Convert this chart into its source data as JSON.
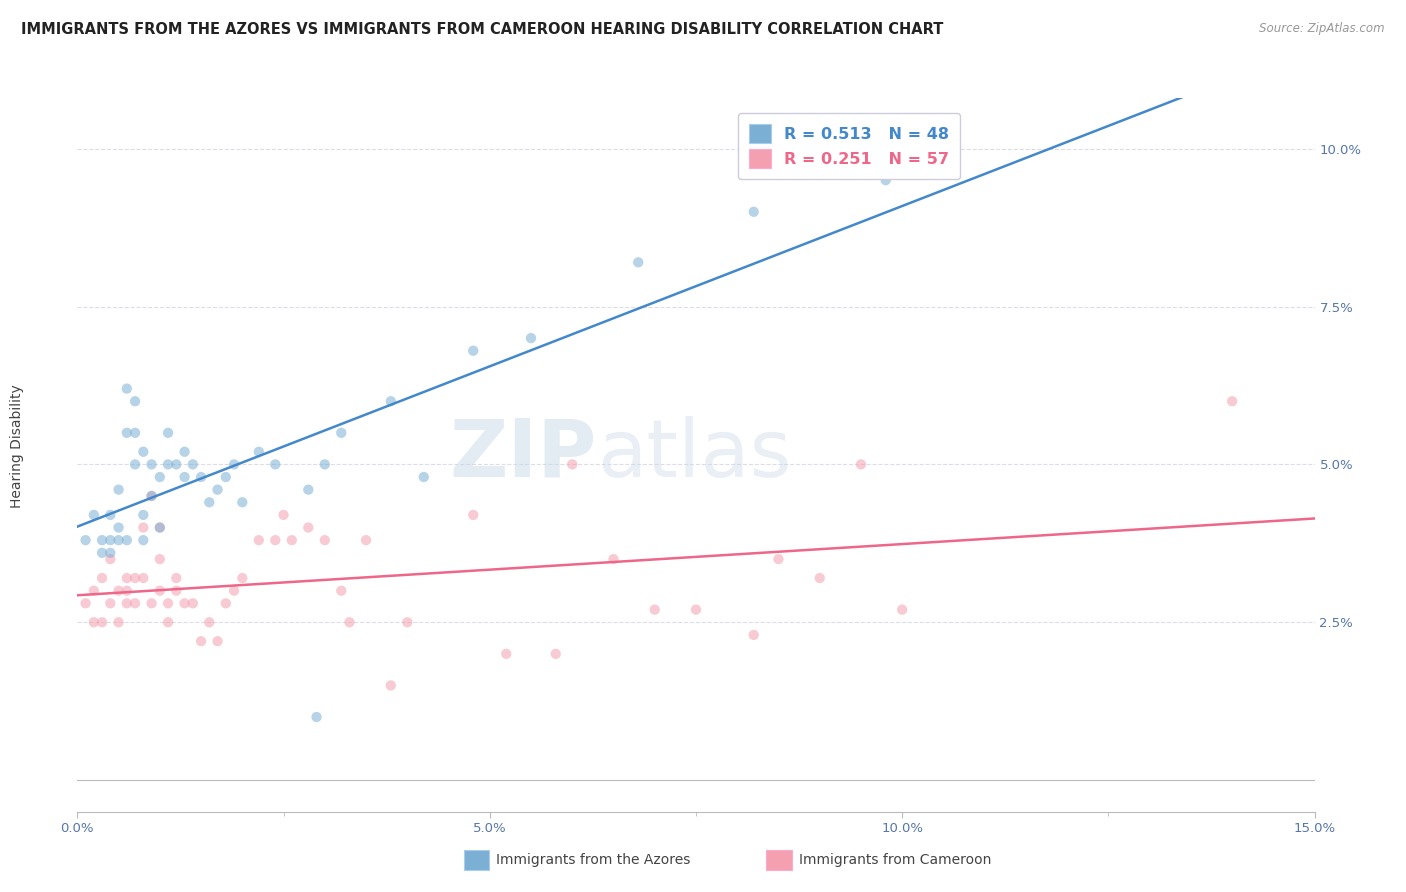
{
  "title": "IMMIGRANTS FROM THE AZORES VS IMMIGRANTS FROM CAMEROON HEARING DISABILITY CORRELATION CHART",
  "source": "Source: ZipAtlas.com",
  "ylabel": "Hearing Disability",
  "xlim": [
    0.0,
    0.15
  ],
  "ylim": [
    -0.005,
    0.108
  ],
  "xticks_major": [
    0.0,
    0.05,
    0.1,
    0.15
  ],
  "xticks_minor": [
    0.025,
    0.075,
    0.125
  ],
  "xtick_labels": [
    "0.0%",
    "5.0%",
    "10.0%",
    "15.0%"
  ],
  "yticks": [
    0.025,
    0.05,
    0.075,
    0.1
  ],
  "ytick_labels": [
    "2.5%",
    "5.0%",
    "7.5%",
    "10.0%"
  ],
  "azores_color": "#7BAFD4",
  "cameroon_color": "#F4A0B0",
  "azores_line_color": "#4488CC",
  "cameroon_line_color": "#EE6688",
  "legend_R_azores": "R = 0.513",
  "legend_N_azores": "N = 48",
  "legend_R_cameroon": "R = 0.251",
  "legend_N_cameroon": "N = 57",
  "watermark_zip": "ZIP",
  "watermark_atlas": "atlas",
  "azores_x": [
    0.001,
    0.002,
    0.003,
    0.003,
    0.004,
    0.004,
    0.004,
    0.005,
    0.005,
    0.005,
    0.006,
    0.006,
    0.006,
    0.007,
    0.007,
    0.007,
    0.008,
    0.008,
    0.008,
    0.009,
    0.009,
    0.01,
    0.01,
    0.011,
    0.011,
    0.012,
    0.013,
    0.013,
    0.014,
    0.015,
    0.016,
    0.017,
    0.018,
    0.019,
    0.02,
    0.022,
    0.024,
    0.028,
    0.03,
    0.032,
    0.038,
    0.042,
    0.048,
    0.055,
    0.068,
    0.082,
    0.098,
    0.029
  ],
  "azores_y": [
    0.038,
    0.042,
    0.038,
    0.036,
    0.042,
    0.038,
    0.036,
    0.04,
    0.038,
    0.046,
    0.062,
    0.055,
    0.038,
    0.06,
    0.055,
    0.05,
    0.042,
    0.038,
    0.052,
    0.045,
    0.05,
    0.048,
    0.04,
    0.055,
    0.05,
    0.05,
    0.048,
    0.052,
    0.05,
    0.048,
    0.044,
    0.046,
    0.048,
    0.05,
    0.044,
    0.052,
    0.05,
    0.046,
    0.05,
    0.055,
    0.06,
    0.048,
    0.068,
    0.07,
    0.082,
    0.09,
    0.095,
    0.01
  ],
  "cameroon_x": [
    0.001,
    0.002,
    0.002,
    0.003,
    0.003,
    0.004,
    0.004,
    0.005,
    0.005,
    0.006,
    0.006,
    0.006,
    0.007,
    0.007,
    0.008,
    0.008,
    0.009,
    0.009,
    0.01,
    0.01,
    0.01,
    0.011,
    0.011,
    0.012,
    0.012,
    0.013,
    0.014,
    0.015,
    0.016,
    0.017,
    0.018,
    0.019,
    0.02,
    0.022,
    0.024,
    0.025,
    0.026,
    0.028,
    0.03,
    0.032,
    0.033,
    0.035,
    0.038,
    0.04,
    0.048,
    0.052,
    0.058,
    0.06,
    0.065,
    0.07,
    0.075,
    0.082,
    0.085,
    0.09,
    0.095,
    0.1,
    0.14
  ],
  "cameroon_y": [
    0.028,
    0.03,
    0.025,
    0.032,
    0.025,
    0.035,
    0.028,
    0.03,
    0.025,
    0.032,
    0.028,
    0.03,
    0.032,
    0.028,
    0.032,
    0.04,
    0.045,
    0.028,
    0.04,
    0.03,
    0.035,
    0.025,
    0.028,
    0.03,
    0.032,
    0.028,
    0.028,
    0.022,
    0.025,
    0.022,
    0.028,
    0.03,
    0.032,
    0.038,
    0.038,
    0.042,
    0.038,
    0.04,
    0.038,
    0.03,
    0.025,
    0.038,
    0.015,
    0.025,
    0.042,
    0.02,
    0.02,
    0.05,
    0.035,
    0.027,
    0.027,
    0.023,
    0.035,
    0.032,
    0.05,
    0.027,
    0.06
  ],
  "background_color": "#FFFFFF",
  "grid_color": "#DDDDE8",
  "title_fontsize": 10.5,
  "axis_label_fontsize": 10,
  "tick_fontsize": 9.5,
  "marker_size": 55,
  "marker_alpha": 0.55,
  "line_width": 1.8
}
